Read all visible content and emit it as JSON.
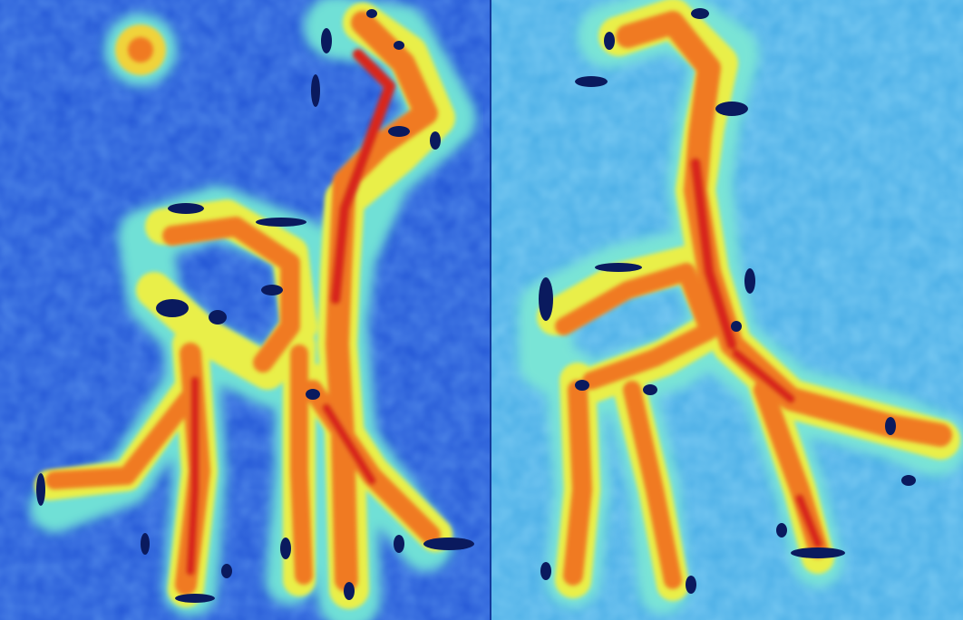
{
  "image": {
    "description_tags": [
      "heatmap-overlay",
      "saliency-map",
      "giraffe-toy-silhouette"
    ],
    "panels": [
      {
        "name": "left",
        "background_color": "#2a5fdc"
      },
      {
        "name": "right",
        "background_color": "#49b6e8"
      }
    ],
    "colormap": [
      "#0a1a6e",
      "#1f56d8",
      "#3aa6ee",
      "#7fe6d8",
      "#c8f56a",
      "#f5e23a",
      "#f79a1e",
      "#e8411a",
      "#b0140e"
    ]
  }
}
